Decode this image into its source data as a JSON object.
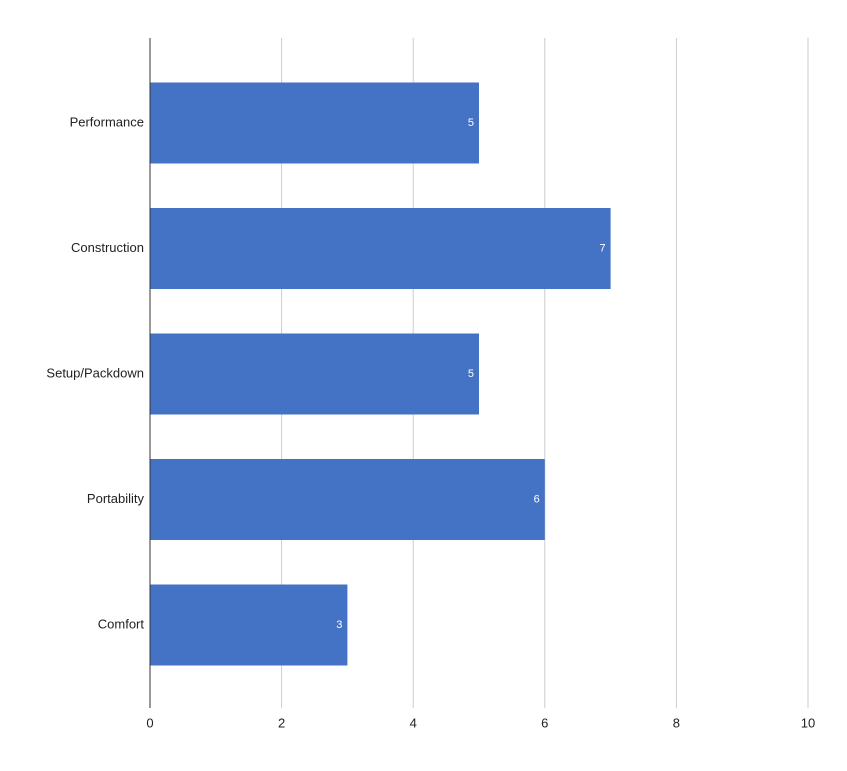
{
  "chart_data": {
    "type": "bar",
    "orientation": "horizontal",
    "categories": [
      "Performance",
      "Construction",
      "Setup/Packdown",
      "Portability",
      "Comfort"
    ],
    "values": [
      5,
      7,
      5,
      6,
      3
    ],
    "color": "#4472c4",
    "xlim": [
      0,
      10
    ],
    "xticks": [
      0,
      2,
      4,
      6,
      8,
      10
    ],
    "grid": true,
    "data_labels": true
  }
}
